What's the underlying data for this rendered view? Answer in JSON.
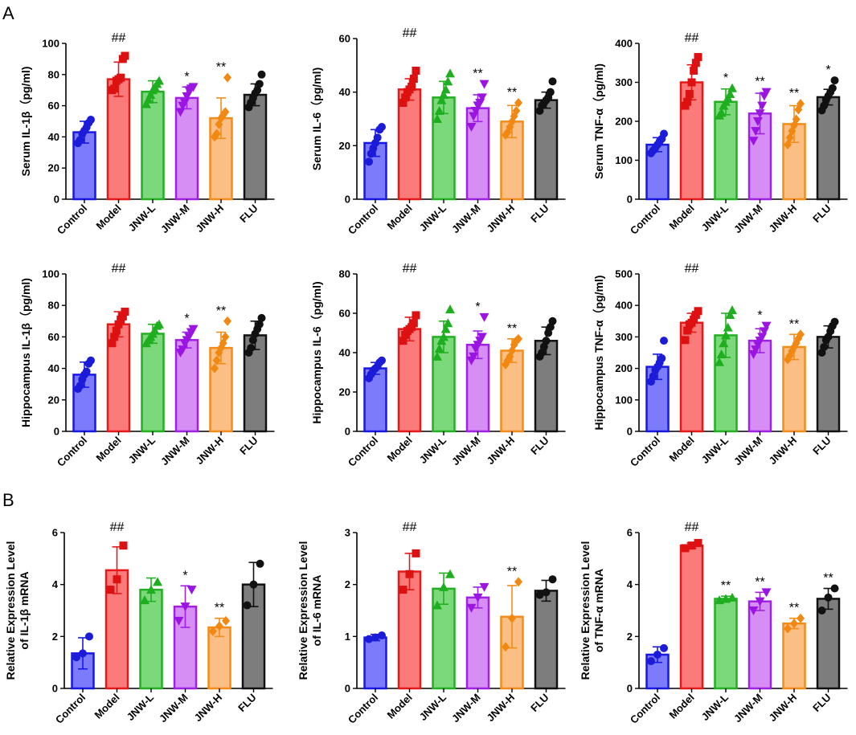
{
  "panel_letters": [
    "A",
    "B"
  ],
  "groups": [
    "Control",
    "Model",
    "JNW-L",
    "JNW-M",
    "JNW-H",
    "FLU"
  ],
  "colors": {
    "fills": [
      "#7b7bfb",
      "#fb7b7b",
      "#7bd97b",
      "#d68ef5",
      "#fbbf85",
      "#7d7d7d"
    ],
    "strokes": [
      "#1818e6",
      "#e61818",
      "#22b022",
      "#a020e6",
      "#f58c18",
      "#111111"
    ],
    "points": [
      "#1c1cd8",
      "#dd1111",
      "#1fae1f",
      "#9a14e2",
      "#f08812",
      "#111111"
    ],
    "axis": "#000000"
  },
  "chart_data": [
    {
      "type": "bar",
      "section": "A",
      "title": "",
      "ylabel": "Serum IL-1β（pg/ml)",
      "categories": [
        "Control",
        "Model",
        "JNW-L",
        "JNW-M",
        "JNW-H",
        "FLU"
      ],
      "values": [
        43,
        77,
        69,
        65,
        52,
        67
      ],
      "sd": [
        7,
        11,
        7,
        7,
        13,
        7
      ],
      "ylim": [
        0,
        100
      ],
      "yticks": [
        0,
        20,
        40,
        60,
        80,
        100
      ],
      "points": [
        [
          36,
          38,
          42,
          44,
          46,
          49,
          51
        ],
        [
          70,
          71,
          76,
          77,
          78,
          90,
          92
        ],
        [
          61,
          64,
          67,
          70,
          72,
          74,
          76
        ],
        [
          56,
          60,
          62,
          66,
          70,
          71,
          72
        ],
        [
          40,
          42,
          48,
          52,
          54,
          56,
          78
        ],
        [
          59,
          62,
          65,
          68,
          70,
          74,
          80
        ]
      ],
      "point_shape": [
        "circle",
        "square",
        "triangle-up",
        "triangle-down",
        "diamond",
        "circle"
      ],
      "annotations": [
        "",
        "##",
        "",
        "*",
        "**",
        ""
      ]
    },
    {
      "type": "bar",
      "section": "A",
      "title": "",
      "ylabel": "Serum IL-6（pg/ml)",
      "categories": [
        "Control",
        "Model",
        "JNW-L",
        "JNW-M",
        "JNW-H",
        "FLU"
      ],
      "values": [
        21,
        41,
        38,
        34,
        29,
        37
      ],
      "sd": [
        5,
        4,
        6,
        5,
        6,
        3
      ],
      "ylim": [
        0,
        60
      ],
      "yticks": [
        0,
        20,
        40,
        60
      ],
      "points": [
        [
          14,
          17,
          19,
          21,
          23,
          26,
          27
        ],
        [
          36,
          38,
          40,
          41,
          42,
          45,
          48
        ],
        [
          30,
          33,
          37,
          39,
          41,
          44,
          47
        ],
        [
          27,
          31,
          33,
          35,
          36,
          38,
          43
        ],
        [
          24,
          25,
          27,
          29,
          31,
          33,
          36
        ],
        [
          33,
          35,
          36,
          37,
          38,
          40,
          44
        ]
      ],
      "point_shape": [
        "circle",
        "square",
        "triangle-up",
        "triangle-down",
        "diamond",
        "circle"
      ],
      "annotations": [
        "",
        "##",
        "",
        "**",
        "**",
        ""
      ]
    },
    {
      "type": "bar",
      "section": "A",
      "title": "",
      "ylabel": "Serum TNF-α（pg/ml)",
      "categories": [
        "Control",
        "Model",
        "JNW-L",
        "JNW-M",
        "JNW-H",
        "FLU"
      ],
      "values": [
        140,
        300,
        250,
        220,
        193,
        262
      ],
      "sd": [
        18,
        45,
        33,
        52,
        47,
        20
      ],
      "ylim": [
        0,
        400
      ],
      "yticks": [
        0,
        100,
        200,
        300,
        400
      ],
      "points": [
        [
          118,
          125,
          132,
          140,
          148,
          155,
          168
        ],
        [
          240,
          250,
          270,
          300,
          330,
          350,
          365
        ],
        [
          215,
          222,
          240,
          250,
          260,
          270,
          285
        ],
        [
          150,
          175,
          200,
          220,
          240,
          265,
          275
        ],
        [
          140,
          158,
          175,
          190,
          205,
          230,
          245
        ],
        [
          228,
          240,
          255,
          265,
          275,
          285,
          305
        ]
      ],
      "point_shape": [
        "circle",
        "square",
        "triangle-up",
        "triangle-down",
        "diamond",
        "circle"
      ],
      "annotations": [
        "",
        "##",
        "*",
        "**",
        "**",
        "*"
      ]
    },
    {
      "type": "bar",
      "section": "A",
      "title": "",
      "ylabel": "Hippocampus IL-1β（pg/ml)",
      "categories": [
        "Control",
        "Model",
        "JNW-L",
        "JNW-M",
        "JNW-H",
        "FLU"
      ],
      "values": [
        36,
        68,
        62,
        58,
        53,
        61
      ],
      "sd": [
        8,
        8,
        6,
        5,
        10,
        9
      ],
      "ylim": [
        0,
        100
      ],
      "yticks": [
        0,
        20,
        40,
        60,
        80,
        100
      ],
      "points": [
        [
          27,
          29,
          33,
          36,
          38,
          43,
          45
        ],
        [
          56,
          60,
          64,
          68,
          71,
          73,
          76
        ],
        [
          56,
          58,
          60,
          62,
          64,
          67,
          68
        ],
        [
          50,
          52,
          56,
          58,
          60,
          63,
          65
        ],
        [
          40,
          45,
          50,
          53,
          56,
          60,
          70
        ],
        [
          50,
          53,
          58,
          62,
          65,
          68,
          72
        ]
      ],
      "point_shape": [
        "circle",
        "square",
        "triangle-up",
        "triangle-down",
        "diamond",
        "circle"
      ],
      "annotations": [
        "",
        "##",
        "",
        "*",
        "**",
        ""
      ]
    },
    {
      "type": "bar",
      "section": "A",
      "title": "",
      "ylabel": "Hippocampus IL-6（pg/ml)",
      "categories": [
        "Control",
        "Model",
        "JNW-L",
        "JNW-M",
        "JNW-H",
        "FLU"
      ],
      "values": [
        32,
        52,
        48,
        44,
        41,
        46
      ],
      "sd": [
        3,
        6,
        8,
        7,
        6,
        7
      ],
      "ylim": [
        0,
        80
      ],
      "yticks": [
        0,
        20,
        40,
        60,
        80
      ],
      "points": [
        [
          27,
          29,
          31,
          32,
          33,
          35,
          36
        ],
        [
          46,
          49,
          51,
          52,
          53,
          55,
          59
        ],
        [
          38,
          42,
          46,
          48,
          52,
          55,
          62
        ],
        [
          36,
          38,
          42,
          44,
          46,
          48,
          58
        ],
        [
          34,
          36,
          38,
          41,
          44,
          46,
          47
        ],
        [
          38,
          40,
          43,
          46,
          50,
          53,
          56
        ]
      ],
      "point_shape": [
        "circle",
        "square",
        "triangle-up",
        "triangle-down",
        "diamond",
        "circle"
      ],
      "annotations": [
        "",
        "##",
        "",
        "*",
        "**",
        ""
      ]
    },
    {
      "type": "bar",
      "section": "A",
      "title": "",
      "ylabel": "Hippocampus TNF-α（pg/ml)",
      "categories": [
        "Control",
        "Model",
        "JNW-L",
        "JNW-M",
        "JNW-H",
        "FLU"
      ],
      "values": [
        205,
        345,
        305,
        288,
        268,
        300
      ],
      "sd": [
        40,
        30,
        70,
        38,
        40,
        35
      ],
      "ylim": [
        0,
        500
      ],
      "yticks": [
        0,
        100,
        200,
        300,
        400,
        500
      ],
      "points": [
        [
          158,
          175,
          195,
          205,
          218,
          232,
          288
        ],
        [
          290,
          320,
          340,
          345,
          355,
          370,
          382
        ],
        [
          220,
          245,
          280,
          305,
          330,
          370,
          385
        ],
        [
          245,
          260,
          275,
          288,
          300,
          318,
          335
        ],
        [
          228,
          240,
          255,
          268,
          280,
          295,
          308
        ],
        [
          250,
          268,
          290,
          300,
          318,
          335,
          348
        ]
      ],
      "point_shape": [
        "circle",
        "square",
        "triangle-up",
        "triangle-down",
        "diamond",
        "circle"
      ],
      "annotations": [
        "",
        "##",
        "",
        "*",
        "**",
        ""
      ]
    },
    {
      "type": "bar",
      "section": "B",
      "title": "",
      "ylabel": [
        "Relative Expression Level",
        "of IL-1β mRNA"
      ],
      "categories": [
        "Control",
        "Model",
        "JNW-L",
        "JNW-M",
        "JNW-H",
        "FLU"
      ],
      "values": [
        1.35,
        4.55,
        3.8,
        3.15,
        2.35,
        4.0
      ],
      "sd": [
        0.6,
        0.9,
        0.45,
        0.8,
        0.35,
        0.85
      ],
      "ylim": [
        0,
        6
      ],
      "yticks": [
        0,
        2,
        4,
        6
      ],
      "points": [
        [
          1.2,
          1.35,
          2.0
        ],
        [
          3.8,
          4.2,
          5.5
        ],
        [
          3.4,
          3.8,
          4.1
        ],
        [
          2.6,
          3.15,
          3.8
        ],
        [
          2.2,
          2.4,
          2.6
        ],
        [
          3.2,
          4.0,
          4.8
        ]
      ],
      "point_shape": [
        "circle",
        "square",
        "triangle-up",
        "triangle-down",
        "diamond",
        "circle"
      ],
      "annotations": [
        "",
        "##",
        "",
        "*",
        "**",
        ""
      ]
    },
    {
      "type": "bar",
      "section": "B",
      "title": "",
      "ylabel": [
        "Relative Expression Level",
        "of IL-6 mRNA"
      ],
      "categories": [
        "Control",
        "Model",
        "JNW-L",
        "JNW-M",
        "JNW-H",
        "FLU"
      ],
      "values": [
        0.98,
        2.25,
        1.92,
        1.75,
        1.38,
        1.88
      ],
      "sd": [
        0.06,
        0.35,
        0.3,
        0.2,
        0.6,
        0.2
      ],
      "ylim": [
        0,
        3
      ],
      "yticks": [
        0,
        1,
        2,
        3
      ],
      "points": [
        [
          0.95,
          0.98,
          1.02
        ],
        [
          1.9,
          2.2,
          2.6
        ],
        [
          1.6,
          1.95,
          2.2
        ],
        [
          1.55,
          1.75,
          1.95
        ],
        [
          0.8,
          1.35,
          2.05
        ],
        [
          1.8,
          1.85,
          2.1
        ]
      ],
      "point_shape": [
        "circle",
        "square",
        "triangle-up",
        "triangle-down",
        "diamond",
        "circle"
      ],
      "annotations": [
        "",
        "##",
        "",
        "",
        "**",
        ""
      ]
    },
    {
      "type": "bar",
      "section": "B",
      "title": "",
      "ylabel": [
        "Relative Expression Level",
        "of TNF-α  mRNA"
      ],
      "categories": [
        "Control",
        "Model",
        "JNW-L",
        "JNW-M",
        "JNW-H",
        "FLU"
      ],
      "values": [
        1.3,
        5.5,
        3.45,
        3.35,
        2.5,
        3.45
      ],
      "sd": [
        0.3,
        0.1,
        0.1,
        0.35,
        0.2,
        0.4
      ],
      "ylim": [
        0,
        6
      ],
      "yticks": [
        0,
        2,
        4,
        6
      ],
      "points": [
        [
          1.05,
          1.3,
          1.55
        ],
        [
          5.4,
          5.5,
          5.6
        ],
        [
          3.4,
          3.45,
          3.5
        ],
        [
          3.0,
          3.35,
          3.7
        ],
        [
          2.3,
          2.5,
          2.7
        ],
        [
          3.0,
          3.5,
          3.85
        ]
      ],
      "point_shape": [
        "circle",
        "square",
        "triangle-up",
        "triangle-down",
        "diamond",
        "circle"
      ],
      "annotations": [
        "",
        "##",
        "**",
        "**",
        "**",
        "**"
      ]
    }
  ]
}
